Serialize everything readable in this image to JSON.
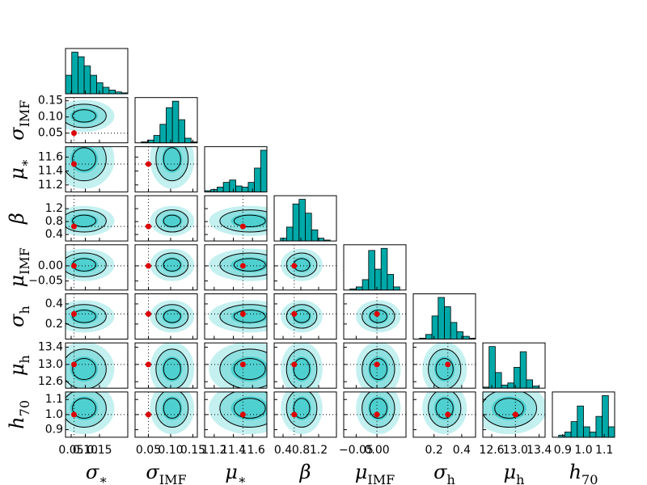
{
  "chart_data": {
    "type": "corner",
    "fill_color": "#00a8a8",
    "contour_colors": [
      "#c4f0f0",
      "#8fe0e0",
      "#4fd0d0"
    ],
    "truth_color": "#dd0000",
    "parameters": [
      {
        "symbol": "σ",
        "subscript": "∗",
        "truth": 0.06,
        "xlim": [
          0.03,
          0.25
        ],
        "ticks": [
          0.05,
          {
            "value": 0.1,
            "label": "0.10"
          },
          0.15
        ],
        "bins": [
          0.03,
          0.052,
          0.074,
          0.096,
          0.118,
          0.14,
          0.162,
          0.184,
          0.206,
          0.228,
          0.25
        ],
        "counts": [
          20,
          45,
          40,
          30,
          20,
          12,
          7,
          4,
          2,
          1
        ]
      },
      {
        "symbol": "σ",
        "subscript": "IMF",
        "truth": 0.05,
        "xlim": [
          0.02,
          0.16
        ],
        "ticks": [
          0.05,
          {
            "value": 0.1,
            "label": "0.10"
          },
          0.15
        ],
        "bins": [
          0.02,
          0.034,
          0.048,
          0.062,
          0.076,
          0.09,
          0.104,
          0.118,
          0.132,
          0.146,
          0.16
        ],
        "counts": [
          0,
          1,
          3,
          8,
          20,
          38,
          45,
          25,
          5,
          1
        ]
      },
      {
        "symbol": "μ",
        "subscript": "∗",
        "truth": 11.5,
        "xlim": [
          11.1,
          11.75
        ],
        "ticks": [
          11.2,
          11.4,
          11.6
        ],
        "bins": [
          11.1,
          11.165,
          11.23,
          11.295,
          11.36,
          11.425,
          11.49,
          11.555,
          11.62,
          11.685,
          11.75
        ],
        "counts": [
          1,
          2,
          4,
          8,
          10,
          5,
          4,
          8,
          20,
          35
        ]
      },
      {
        "symbol": "β",
        "subscript": "",
        "truth": 0.65,
        "xlim": [
          0.2,
          1.6
        ],
        "ticks": [
          0.4,
          0.8,
          1.2
        ],
        "bins": [
          0.2,
          0.34,
          0.48,
          0.62,
          0.76,
          0.9,
          1.04,
          1.18,
          1.32,
          1.46,
          1.6
        ],
        "counts": [
          0,
          3,
          15,
          40,
          45,
          30,
          12,
          3,
          1,
          0
        ]
      },
      {
        "symbol": "μ",
        "subscript": "IMF",
        "truth": 0.0,
        "xlim": [
          -0.08,
          0.07
        ],
        "ticks": [
          {
            "value": -0.05,
            "label": "−0.05"
          },
          {
            "value": 0,
            "label": "0.00"
          }
        ],
        "bins": [
          -0.08,
          -0.065,
          -0.05,
          -0.035,
          -0.02,
          -0.005,
          0.01,
          0.025,
          0.04,
          0.055,
          0.07
        ],
        "counts": [
          0,
          1,
          3,
          10,
          38,
          20,
          40,
          15,
          3,
          0
        ]
      },
      {
        "symbol": "σ",
        "subscript": "h",
        "truth": 0.3,
        "xlim": [
          0.05,
          0.5
        ],
        "ticks": [
          0.2,
          0.4
        ],
        "bins": [
          0.05,
          0.095,
          0.14,
          0.185,
          0.23,
          0.275,
          0.32,
          0.365,
          0.41,
          0.455,
          0.5
        ],
        "counts": [
          0,
          1,
          5,
          25,
          45,
          35,
          18,
          8,
          3,
          1
        ]
      },
      {
        "symbol": "μ",
        "subscript": "h",
        "truth": 13.0,
        "xlim": [
          12.45,
          13.5
        ],
        "ticks": [
          12.6,
          {
            "value": 13,
            "label": "13.0"
          },
          13.4
        ],
        "bins": [
          12.45,
          12.555,
          12.66,
          12.765,
          12.87,
          12.975,
          13.08,
          13.185,
          13.29,
          13.395,
          13.5
        ],
        "counts": [
          1,
          40,
          15,
          3,
          5,
          20,
          35,
          8,
          2,
          0
        ]
      },
      {
        "symbol": "h",
        "subscript": "70",
        "truth": 1.0,
        "xlim": [
          0.85,
          1.15
        ],
        "ticks": [
          0.9,
          {
            "value": 1,
            "label": "1.0"
          },
          1.1
        ],
        "bins": [
          0.85,
          0.88,
          0.91,
          0.94,
          0.97,
          1.0,
          1.03,
          1.06,
          1.09,
          1.12,
          1.15
        ],
        "counts": [
          0,
          2,
          5,
          15,
          30,
          10,
          5,
          20,
          40,
          10
        ]
      }
    ]
  }
}
